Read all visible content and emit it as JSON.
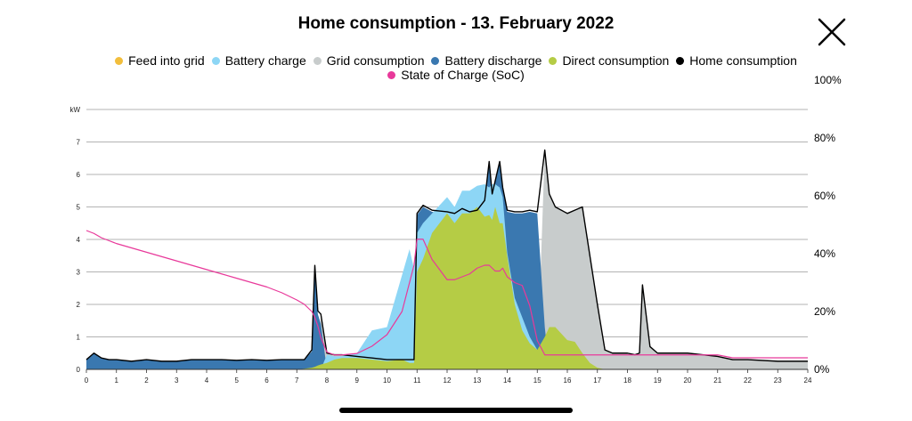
{
  "title": "Home consumption - 13. February 2022",
  "close_icon": "close-x-icon",
  "legend": [
    {
      "label": "Feed into grid",
      "color": "#F2BE3C"
    },
    {
      "label": "Battery charge",
      "color": "#8DD6F5"
    },
    {
      "label": "Grid consumption",
      "color": "#C8CCCC"
    },
    {
      "label": "Battery discharge",
      "color": "#3A78B0"
    },
    {
      "label": "Direct consumption",
      "color": "#B5CC45"
    },
    {
      "label": "Home consumption",
      "color": "#000000"
    },
    {
      "label": "State of Charge (SoC)",
      "color": "#E8399A"
    }
  ],
  "chart_data": {
    "type": "area",
    "x": [
      0,
      0.25,
      0.5,
      0.75,
      1,
      1.5,
      2,
      2.5,
      3,
      3.5,
      4,
      4.5,
      5,
      5.5,
      6,
      6.5,
      7,
      7.25,
      7.5,
      7.6,
      7.7,
      7.8,
      8,
      8.25,
      8.5,
      9,
      9.5,
      10,
      10.5,
      10.75,
      10.9,
      11,
      11.2,
      11.5,
      12,
      12.25,
      12.5,
      12.75,
      13,
      13.25,
      13.4,
      13.5,
      13.6,
      13.75,
      13.85,
      14,
      14.25,
      14.5,
      14.75,
      15,
      15.25,
      15.4,
      15.6,
      16,
      16.25,
      16.5,
      16.75,
      17,
      17.25,
      17.5,
      18,
      18.25,
      18.4,
      18.5,
      18.75,
      19,
      20,
      20.5,
      21,
      21.5,
      22,
      23,
      24
    ],
    "series": [
      {
        "name": "Home consumption",
        "color": "#000000",
        "values": [
          0.3,
          0.5,
          0.35,
          0.3,
          0.3,
          0.25,
          0.3,
          0.25,
          0.25,
          0.3,
          0.3,
          0.3,
          0.28,
          0.3,
          0.28,
          0.3,
          0.3,
          0.3,
          0.6,
          3.2,
          1.8,
          1.7,
          0.5,
          0.45,
          0.45,
          0.4,
          0.35,
          0.3,
          0.3,
          0.3,
          0.3,
          4.8,
          5.05,
          4.9,
          4.85,
          4.8,
          4.95,
          4.85,
          4.9,
          5.2,
          6.4,
          5.4,
          5.8,
          6.4,
          5.6,
          4.9,
          4.85,
          4.85,
          4.9,
          4.85,
          6.75,
          5.4,
          5.0,
          4.8,
          4.9,
          5.0,
          3.5,
          2.0,
          0.6,
          0.5,
          0.5,
          0.45,
          0.5,
          2.6,
          0.7,
          0.5,
          0.5,
          0.45,
          0.4,
          0.3,
          0.3,
          0.25,
          0.25
        ]
      },
      {
        "name": "Battery discharge",
        "color": "#3A78B0",
        "values": [
          0.3,
          0.5,
          0.35,
          0.3,
          0.3,
          0.25,
          0.3,
          0.25,
          0.25,
          0.3,
          0.3,
          0.3,
          0.28,
          0.3,
          0.28,
          0.3,
          0.3,
          0.3,
          0.55,
          3.1,
          1.7,
          1.4,
          0,
          0,
          0,
          0,
          0,
          0,
          0,
          0,
          0,
          4.75,
          5.0,
          4.85,
          4.8,
          4.75,
          4.9,
          4.8,
          4.85,
          5.15,
          6.4,
          5.4,
          5.8,
          6.4,
          5.6,
          4.85,
          4.8,
          4.8,
          4.85,
          4.8,
          1.3,
          0,
          0,
          0,
          0,
          0,
          0,
          0,
          0,
          0,
          0,
          0,
          0,
          0,
          0,
          0,
          0,
          0,
          0,
          0,
          0,
          0,
          0
        ]
      },
      {
        "name": "Battery charge",
        "color": "#8DD6F5",
        "values": [
          0,
          0,
          0,
          0,
          0,
          0,
          0,
          0,
          0,
          0,
          0,
          0,
          0,
          0,
          0,
          0,
          0,
          0,
          0,
          0,
          0,
          0,
          0.45,
          0.4,
          0.4,
          0.5,
          1.2,
          1.3,
          2.9,
          3.7,
          3.1,
          4.2,
          4.5,
          4.8,
          5.3,
          5.0,
          5.5,
          5.5,
          5.65,
          5.7,
          5.6,
          5.7,
          5.7,
          5.6,
          5.3,
          3.6,
          2.2,
          1.6,
          1.0,
          0.6,
          0,
          0,
          0,
          0,
          0,
          0,
          0,
          0,
          0,
          0,
          0,
          0,
          0,
          0,
          0,
          0,
          0,
          0,
          0,
          0,
          0,
          0,
          0
        ]
      },
      {
        "name": "Grid consumption",
        "color": "#C8CCCC",
        "values": [
          0,
          0,
          0,
          0,
          0,
          0,
          0,
          0,
          0,
          0,
          0,
          0,
          0,
          0,
          0,
          0,
          0,
          0,
          0,
          0,
          0,
          1.6,
          0.5,
          0.45,
          0.45,
          0.4,
          0.35,
          0.3,
          0.3,
          0.3,
          0.3,
          0,
          0,
          0,
          0,
          0,
          0,
          0,
          0,
          0,
          0,
          0,
          0,
          0,
          0,
          0,
          0,
          0,
          0,
          0,
          6.75,
          5.4,
          5.0,
          4.8,
          4.9,
          5.0,
          3.5,
          2.0,
          0.6,
          0.5,
          0.5,
          0.45,
          0.5,
          2.6,
          0.7,
          0.5,
          0.5,
          0.45,
          0.4,
          0.3,
          0.3,
          0.25,
          0.25
        ]
      },
      {
        "name": "Direct consumption",
        "color": "#B5CC45",
        "values": [
          0,
          0,
          0,
          0,
          0,
          0,
          0,
          0,
          0,
          0,
          0,
          0,
          0,
          0,
          0,
          0,
          0,
          0.02,
          0.05,
          0.08,
          0.12,
          0.15,
          0.2,
          0.3,
          0.35,
          0.35,
          0.3,
          0.25,
          0.3,
          0.2,
          0.2,
          3.0,
          3.4,
          4.2,
          4.8,
          4.5,
          4.8,
          4.8,
          5.0,
          4.7,
          4.75,
          4.6,
          5.0,
          4.5,
          4.5,
          3.5,
          2.0,
          1.2,
          0.8,
          0.6,
          1.0,
          1.3,
          1.3,
          0.9,
          0.85,
          0.5,
          0.2,
          0.05,
          0,
          0,
          0,
          0,
          0,
          0,
          0,
          0,
          0,
          0,
          0,
          0,
          0,
          0,
          0
        ]
      },
      {
        "name": "State of Charge (SoC)",
        "color": "#E8399A",
        "axis": "right",
        "values": [
          48,
          47,
          45.5,
          44.5,
          43.5,
          42,
          40.5,
          39,
          37.5,
          36,
          34.5,
          33,
          31.5,
          30,
          28.5,
          26.5,
          24,
          22.5,
          20,
          18,
          15,
          11,
          6,
          5,
          5,
          5.5,
          8,
          12,
          20,
          30,
          36,
          45,
          45,
          38,
          31,
          31,
          32,
          33,
          35,
          36,
          36,
          35,
          34,
          34,
          35,
          32,
          30,
          29,
          22,
          10,
          5,
          5,
          5,
          5,
          5,
          5,
          5,
          5,
          5,
          5,
          5,
          5,
          5,
          5,
          5,
          5,
          5,
          5,
          5,
          4,
          4,
          4,
          4
        ]
      }
    ],
    "xlim": [
      0,
      24
    ],
    "xticks": [
      "0",
      "1",
      "2",
      "3",
      "4",
      "5",
      "6",
      "7",
      "8",
      "9",
      "10",
      "11",
      "12",
      "13",
      "14",
      "15",
      "16",
      "17",
      "18",
      "19",
      "20",
      "21",
      "22",
      "23",
      "24"
    ],
    "ylabel": "kW",
    "ylim": [
      0,
      8
    ],
    "yticks": [
      "0",
      "1",
      "2",
      "3",
      "4",
      "5",
      "6",
      "7"
    ],
    "y2lim": [
      0,
      100
    ],
    "y2ticks": [
      "0%",
      "20%",
      "40%",
      "60%",
      "80%",
      "100%"
    ],
    "grid": true,
    "legend_position": "top"
  }
}
